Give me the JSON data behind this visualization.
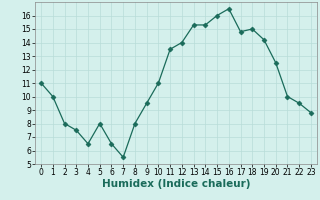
{
  "x": [
    0,
    1,
    2,
    3,
    4,
    5,
    6,
    7,
    8,
    9,
    10,
    11,
    12,
    13,
    14,
    15,
    16,
    17,
    18,
    19,
    20,
    21,
    22,
    23
  ],
  "y": [
    11,
    10,
    8,
    7.5,
    6.5,
    8,
    6.5,
    5.5,
    8,
    9.5,
    11,
    13.5,
    14,
    15.3,
    15.3,
    16,
    16.5,
    14.8,
    15,
    14.2,
    12.5,
    10,
    9.5,
    8.8
  ],
  "line_color": "#1a6b5a",
  "marker": "D",
  "marker_size": 2.5,
  "bg_color": "#d4f0ec",
  "grid_color": "#b8ddd8",
  "xlabel": "Humidex (Indice chaleur)",
  "ylim": [
    5,
    17
  ],
  "xlim": [
    -0.5,
    23.5
  ],
  "yticks": [
    5,
    6,
    7,
    8,
    9,
    10,
    11,
    12,
    13,
    14,
    15,
    16
  ],
  "xticks": [
    0,
    1,
    2,
    3,
    4,
    5,
    6,
    7,
    8,
    9,
    10,
    11,
    12,
    13,
    14,
    15,
    16,
    17,
    18,
    19,
    20,
    21,
    22,
    23
  ],
  "tick_fontsize": 5.5,
  "xlabel_fontsize": 7.5,
  "xlabel_fontweight": "bold",
  "linewidth": 0.9
}
